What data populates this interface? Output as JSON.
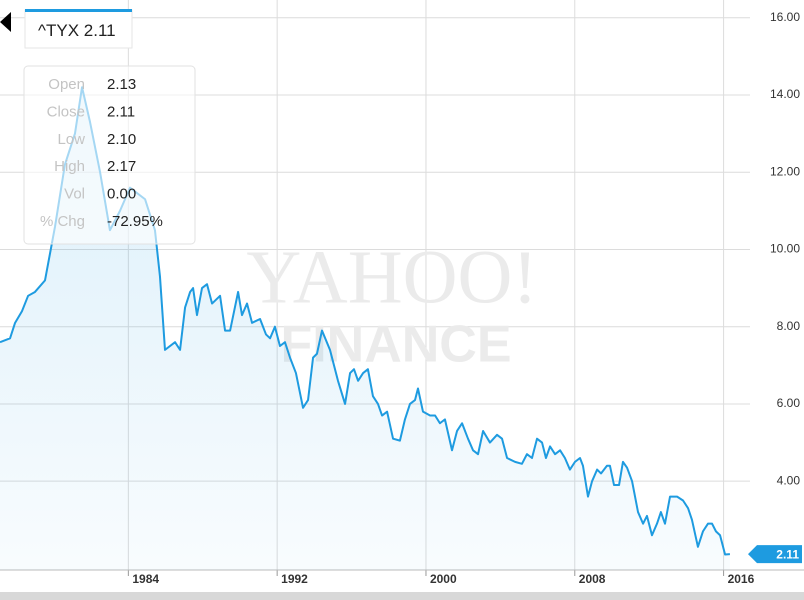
{
  "chart_data": {
    "type": "area",
    "watermark": [
      "YAHOO!",
      "FINANCE"
    ],
    "symbol": "^TYX",
    "current_price": 2.11,
    "tooltip": [
      {
        "label": "Open",
        "value": "2.13"
      },
      {
        "label": "Close",
        "value": "2.11"
      },
      {
        "label": "Low",
        "value": "2.10"
      },
      {
        "label": "High",
        "value": "2.17"
      },
      {
        "label": "Vol",
        "value": "0.00"
      },
      {
        "label": "% Chg",
        "value": "-72.95%"
      }
    ],
    "color": "#1e9be0",
    "grid": true,
    "xlim": [
      1977.1,
      2017.42
    ],
    "xticks": [
      1984,
      1992,
      2000,
      2008,
      2016
    ],
    "ylim": [
      1.7,
      16.46
    ],
    "yticks": [
      {
        "value": 4,
        "label": "4.00"
      },
      {
        "value": 6,
        "label": "6.00"
      },
      {
        "value": 8,
        "label": "8.00"
      },
      {
        "value": 10,
        "label": "10.00"
      },
      {
        "value": 12,
        "label": "12.00"
      },
      {
        "value": 14,
        "label": "14.00"
      },
      {
        "value": 16,
        "label": "16.00"
      }
    ],
    "x": [
      1977.1,
      1977.64,
      1977.91,
      1978.28,
      1978.61,
      1978.98,
      1979.52,
      1980.06,
      1980.59,
      1981.13,
      1981.51,
      1981.94,
      1982.48,
      1983.01,
      1983.55,
      1984.09,
      1984.9,
      1985.43,
      1985.7,
      1985.97,
      1986.51,
      1986.78,
      1987.05,
      1987.32,
      1987.48,
      1987.69,
      1987.96,
      1988.23,
      1988.5,
      1988.93,
      1989.2,
      1989.47,
      1989.9,
      1990.11,
      1990.38,
      1990.65,
      1991.08,
      1991.4,
      1991.62,
      1991.88,
      1992.15,
      1992.42,
      1992.69,
      1993.01,
      1993.39,
      1993.66,
      1993.93,
      1994.14,
      1994.41,
      1994.84,
      1995.27,
      1995.65,
      1995.92,
      1996.13,
      1996.35,
      1996.62,
      1996.88,
      1997.15,
      1997.42,
      1997.64,
      1997.91,
      1998.23,
      1998.6,
      1998.87,
      1999.14,
      1999.41,
      1999.57,
      1999.84,
      2000.22,
      2000.49,
      2000.75,
      2001.02,
      2001.4,
      2001.67,
      2001.94,
      2002.26,
      2002.53,
      2002.8,
      2003.07,
      2003.44,
      2003.82,
      2004.09,
      2004.36,
      2004.79,
      2005.16,
      2005.43,
      2005.7,
      2005.97,
      2006.24,
      2006.45,
      2006.67,
      2006.94,
      2007.21,
      2007.47,
      2007.74,
      2008.01,
      2008.28,
      2008.44,
      2008.71,
      2008.93,
      2009.2,
      2009.41,
      2009.73,
      2009.89,
      2010.11,
      2010.38,
      2010.59,
      2010.81,
      2011.08,
      2011.4,
      2011.67,
      2011.88,
      2012.15,
      2012.42,
      2012.63,
      2012.85,
      2013.12,
      2013.5,
      2013.82,
      2014.09,
      2014.3,
      2014.62,
      2014.89,
      2015.16,
      2015.38,
      2015.59,
      2015.81,
      2016.08,
      2016.34
    ],
    "values": [
      7.6,
      7.7,
      8.1,
      8.4,
      8.8,
      8.9,
      9.2,
      10.6,
      12.2,
      13.0,
      14.2,
      13.3,
      12.0,
      10.5,
      11.0,
      11.6,
      11.3,
      10.5,
      9.3,
      7.4,
      7.6,
      7.4,
      8.5,
      8.9,
      9.0,
      8.3,
      9.0,
      9.1,
      8.6,
      8.8,
      7.9,
      7.9,
      8.9,
      8.3,
      8.6,
      8.1,
      8.2,
      7.8,
      7.7,
      8.0,
      7.5,
      7.6,
      7.2,
      6.8,
      5.9,
      6.1,
      7.2,
      7.3,
      7.9,
      7.4,
      6.6,
      6.0,
      6.8,
      6.9,
      6.6,
      6.8,
      6.9,
      6.2,
      6.0,
      5.7,
      5.8,
      5.1,
      5.05,
      5.6,
      6.0,
      6.1,
      6.4,
      5.8,
      5.7,
      5.7,
      5.5,
      5.6,
      4.8,
      5.3,
      5.5,
      5.1,
      4.8,
      4.7,
      5.3,
      5.0,
      5.2,
      5.1,
      4.6,
      4.5,
      4.45,
      4.7,
      4.6,
      5.1,
      5.0,
      4.6,
      4.9,
      4.7,
      4.8,
      4.6,
      4.3,
      4.5,
      4.6,
      4.4,
      3.6,
      4.0,
      4.3,
      4.2,
      4.4,
      4.4,
      3.9,
      3.9,
      4.5,
      4.35,
      4.0,
      3.2,
      2.9,
      3.1,
      2.6,
      2.9,
      3.2,
      2.9,
      3.6,
      3.6,
      3.5,
      3.3,
      3.0,
      2.3,
      2.7,
      2.9,
      2.9,
      2.7,
      2.6,
      2.1,
      2.11
    ]
  }
}
